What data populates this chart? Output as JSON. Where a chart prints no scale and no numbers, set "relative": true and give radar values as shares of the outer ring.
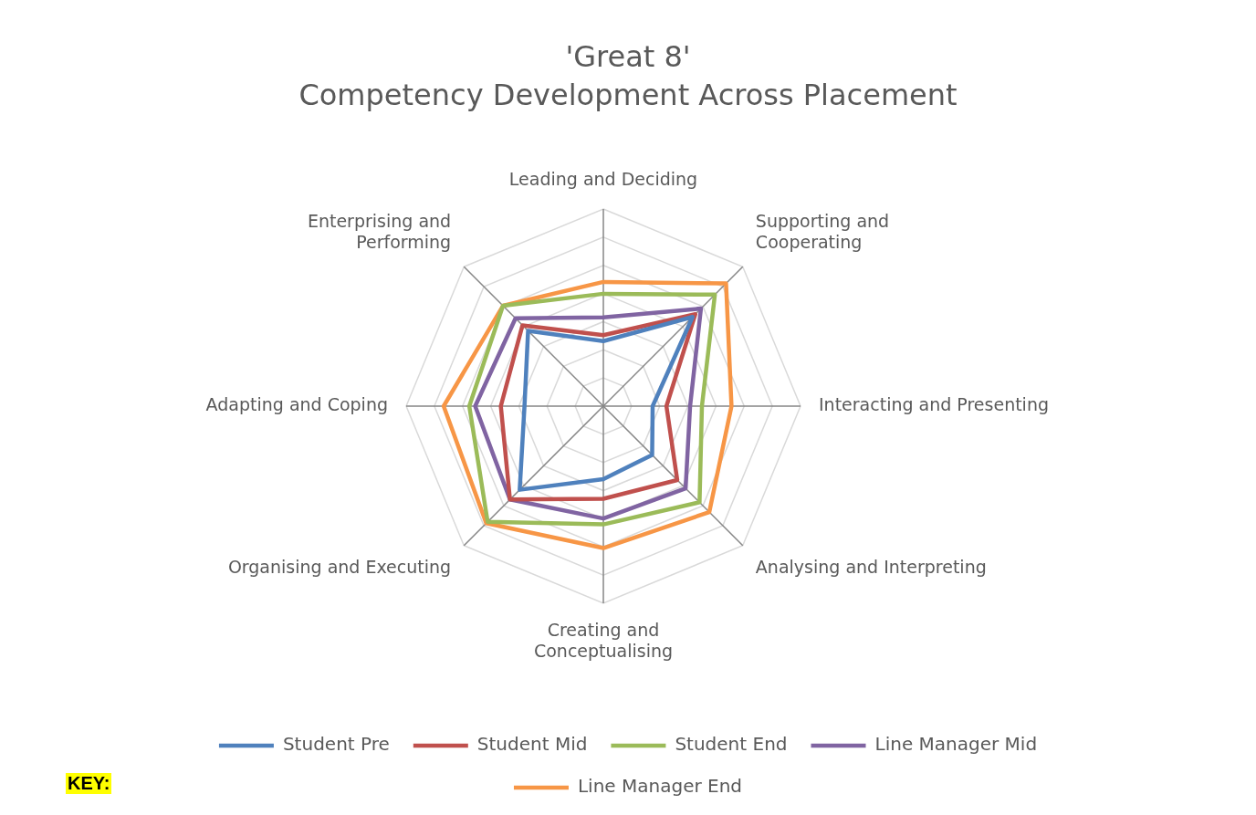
{
  "chart_data": {
    "type": "radar",
    "title": "'Great 8'",
    "subtitle": "Competency Development Across Placement",
    "categories": [
      "Leading and Deciding",
      "Supporting and\nCooperating",
      "Interacting and Presenting",
      "Analysing and Interpreting",
      "Creating and\nConceptualising",
      "Organising and Executing",
      "Adapting and Coping",
      "Enterprising and\nPerforming"
    ],
    "relative": true,
    "grid": true,
    "legend": "bottom",
    "marker": "none",
    "annotations": [
      "KEY:"
    ],
    "series": [
      {
        "name": "Student Pre",
        "color": "#4f81bd",
        "values": [
          0.33,
          0.64,
          0.25,
          0.35,
          0.37,
          0.6,
          0.4,
          0.54
        ]
      },
      {
        "name": "Student Mid",
        "color": "#c0504d",
        "values": [
          0.36,
          0.66,
          0.32,
          0.53,
          0.47,
          0.67,
          0.52,
          0.58
        ]
      },
      {
        "name": "Student End",
        "color": "#9bbb59",
        "values": [
          0.57,
          0.8,
          0.5,
          0.69,
          0.6,
          0.83,
          0.68,
          0.72
        ]
      },
      {
        "name": "Line Manager Mid",
        "color": "#8064a2",
        "values": [
          0.45,
          0.7,
          0.44,
          0.59,
          0.57,
          0.67,
          0.65,
          0.63
        ]
      },
      {
        "name": "Line Manager End",
        "color": "#f79646",
        "values": [
          0.63,
          0.88,
          0.65,
          0.76,
          0.72,
          0.84,
          0.81,
          0.72
        ]
      }
    ]
  }
}
